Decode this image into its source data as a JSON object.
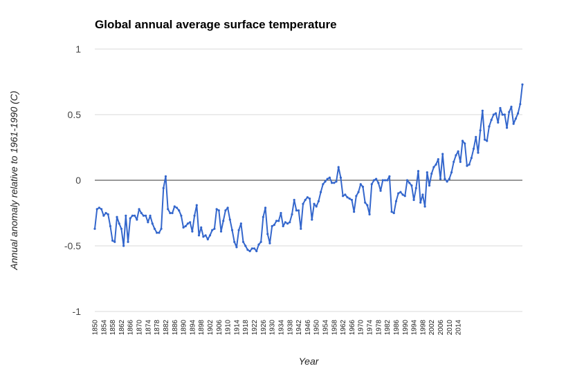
{
  "chart_data": {
    "type": "line",
    "title": "Global annual average surface temperature",
    "xlabel": "Year",
    "ylabel": "Annual anomaly relative to 1961-1990 (C)",
    "ylim": [
      -1,
      1
    ],
    "yticks": [
      1,
      0.5,
      0,
      -0.5,
      -1
    ],
    "ytick_labels": [
      "1",
      "0.5",
      "0",
      "-0.5",
      "-1"
    ],
    "xticks": [
      "1850",
      "1854",
      "1858",
      "1862",
      "1866",
      "1870",
      "1874",
      "1878",
      "1882",
      "1886",
      "1890",
      "1894",
      "1898",
      "1902",
      "1906",
      "1910",
      "1914",
      "1918",
      "1922",
      "1926",
      "1930",
      "1934",
      "1938",
      "1942",
      "1946",
      "1950",
      "1954",
      "1958",
      "1962",
      "1966",
      "1970",
      "1974",
      "1978",
      "1982",
      "1986",
      "1990",
      "1994",
      "1998",
      "2002",
      "2006",
      "2010",
      "2014"
    ],
    "grid": true,
    "colors": {
      "line": "#3366cc",
      "grid": "#d9d9d9",
      "zero_line": "#333333"
    },
    "series": [
      {
        "name": "Annual anomaly",
        "x_start": 1850,
        "values": [
          -0.37,
          -0.22,
          -0.21,
          -0.22,
          -0.27,
          -0.25,
          -0.26,
          -0.35,
          -0.46,
          -0.47,
          -0.28,
          -0.33,
          -0.37,
          -0.5,
          -0.27,
          -0.47,
          -0.29,
          -0.27,
          -0.27,
          -0.3,
          -0.22,
          -0.25,
          -0.27,
          -0.27,
          -0.32,
          -0.27,
          -0.33,
          -0.37,
          -0.4,
          -0.4,
          -0.37,
          -0.06,
          0.03,
          -0.22,
          -0.25,
          -0.25,
          -0.2,
          -0.21,
          -0.23,
          -0.27,
          -0.36,
          -0.35,
          -0.33,
          -0.32,
          -0.39,
          -0.27,
          -0.19,
          -0.42,
          -0.36,
          -0.43,
          -0.42,
          -0.45,
          -0.42,
          -0.38,
          -0.37,
          -0.22,
          -0.23,
          -0.39,
          -0.31,
          -0.23,
          -0.21,
          -0.3,
          -0.38,
          -0.47,
          -0.51,
          -0.38,
          -0.33,
          -0.47,
          -0.5,
          -0.53,
          -0.54,
          -0.52,
          -0.52,
          -0.54,
          -0.49,
          -0.47,
          -0.28,
          -0.21,
          -0.41,
          -0.48,
          -0.35,
          -0.34,
          -0.31,
          -0.31,
          -0.25,
          -0.35,
          -0.32,
          -0.33,
          -0.32,
          -0.26,
          -0.15,
          -0.23,
          -0.23,
          -0.37,
          -0.18,
          -0.15,
          -0.13,
          -0.14,
          -0.3,
          -0.18,
          -0.2,
          -0.16,
          -0.09,
          -0.03,
          -0.01,
          0.01,
          0.02,
          -0.02,
          -0.02,
          -0.01,
          0.1,
          0.02,
          -0.12,
          -0.11,
          -0.13,
          -0.14,
          -0.15,
          -0.24,
          -0.12,
          -0.09,
          -0.03,
          -0.05,
          -0.17,
          -0.19,
          -0.26,
          -0.03,
          0.0,
          0.01,
          -0.02,
          -0.08,
          0.0,
          0.0,
          0.0,
          0.03,
          -0.24,
          -0.25,
          -0.16,
          -0.1,
          -0.09,
          -0.11,
          -0.12,
          0.0,
          -0.02,
          -0.04,
          -0.15,
          -0.06,
          0.07,
          -0.17,
          -0.11,
          -0.2,
          0.06,
          -0.04,
          0.05,
          0.1,
          0.12,
          0.16,
          0.01,
          0.2,
          0.01,
          -0.01,
          0.01,
          0.06,
          0.14,
          0.19,
          0.22,
          0.14,
          0.3,
          0.28,
          0.11,
          0.12,
          0.17,
          0.24,
          0.33,
          0.21,
          0.38,
          0.53,
          0.31,
          0.3,
          0.41,
          0.46,
          0.5,
          0.51,
          0.44,
          0.55,
          0.5,
          0.5,
          0.4,
          0.52,
          0.56,
          0.43,
          0.47,
          0.51,
          0.58,
          0.73
        ]
      }
    ]
  }
}
